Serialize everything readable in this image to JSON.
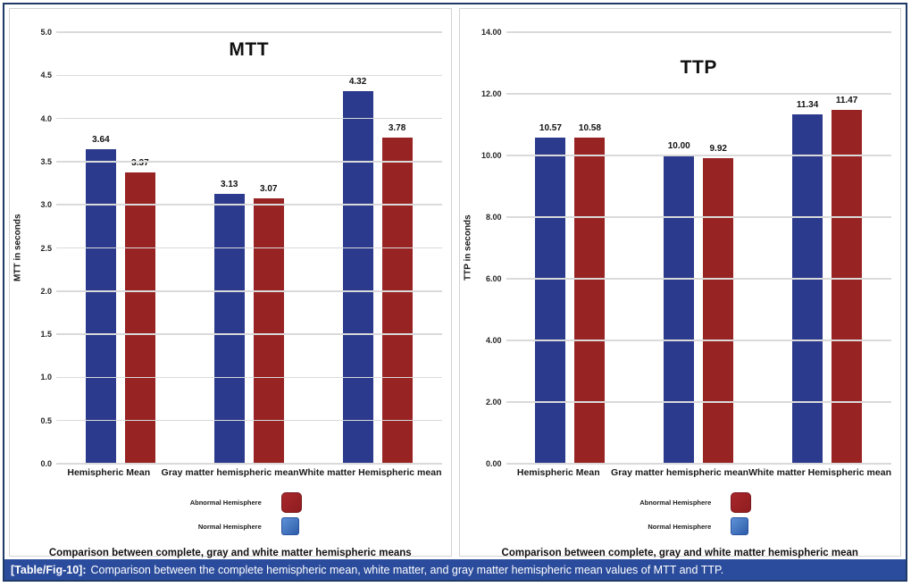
{
  "caption": {
    "tag": "[Table/Fig-10]:",
    "text": "Comparison between the complete hemispheric mean, white matter, and gray matter hemispheric mean values of MTT and TTP."
  },
  "legend": {
    "abnormal_label": "Abnormal Hemisphere",
    "normal_label": "Normal Hemisphere"
  },
  "colors": {
    "normal_bar": "#2b3a8c",
    "abnormal_bar": "#982323",
    "caption_bg": "#2b4c9c",
    "figure_border": "#1f3a68"
  },
  "chart_data": [
    {
      "type": "bar",
      "title": "MTT",
      "ylabel": "MTT in seconds",
      "xlabel": "Comparison between complete, gray and white matter hemispheric means",
      "categories": [
        "Hemispheric Mean",
        "Gray matter hemispheric mean",
        "White matter Hemispheric mean"
      ],
      "series": [
        {
          "name": "Normal Hemisphere",
          "color": "#2b3a8c",
          "values": [
            3.64,
            3.13,
            4.32
          ],
          "labels": [
            "3.64",
            "3.13",
            "4.32"
          ]
        },
        {
          "name": "Abnormal Hemisphere",
          "color": "#982323",
          "values": [
            3.37,
            3.07,
            3.78
          ],
          "labels": [
            "3.37",
            "3.07",
            "3.78"
          ]
        }
      ],
      "ylim": [
        0,
        5
      ],
      "yticks": [
        "0.0",
        "0.5",
        "1.0",
        "1.5",
        "2.0",
        "2.5",
        "3.0",
        "3.5",
        "4.0",
        "4.5",
        "5.0"
      ],
      "grid": true,
      "legend_position": "bottom"
    },
    {
      "type": "bar",
      "title": "TTP",
      "ylabel": "TTP in seconds",
      "xlabel": "Comparison between complete, gray and white matter hemispheric mean",
      "categories": [
        "Hemispheric Mean",
        "Gray matter hemispheric mean",
        "White matter Hemispheric mean"
      ],
      "series": [
        {
          "name": "Normal Hemisphere",
          "color": "#2b3a8c",
          "values": [
            10.57,
            10.0,
            11.34
          ],
          "labels": [
            "10.57",
            "10.00",
            "11.34"
          ]
        },
        {
          "name": "Abnormal Hemisphere",
          "color": "#982323",
          "values": [
            10.58,
            9.92,
            11.47
          ],
          "labels": [
            "10.58",
            "9.92",
            "11.47"
          ]
        }
      ],
      "ylim": [
        0,
        14
      ],
      "yticks": [
        "0.00",
        "2.00",
        "4.00",
        "6.00",
        "8.00",
        "10.00",
        "12.00",
        "14.00"
      ],
      "grid": true,
      "legend_position": "bottom"
    }
  ]
}
